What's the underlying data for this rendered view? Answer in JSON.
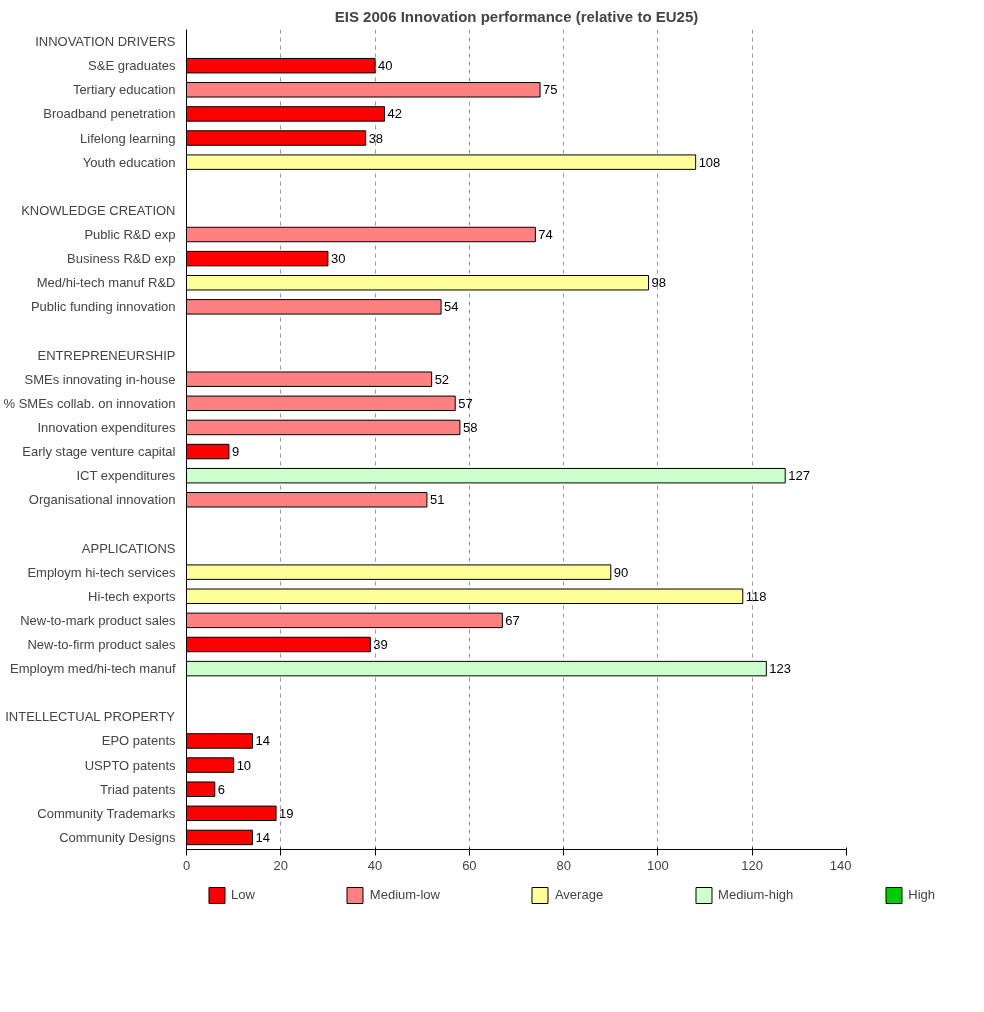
{
  "chart_data": {
    "type": "bar",
    "orientation": "horizontal",
    "title": "EIS 2006 Innovation performance (relative to EU25)",
    "categories": [
      "INNOVATION DRIVERS",
      "S&E graduates",
      "Tertiary education",
      "Broadband penetration",
      "Lifelong learning",
      "Youth education",
      null,
      "KNOWLEDGE CREATION",
      "Public R&D exp",
      "Business R&D exp",
      "Med/hi-tech manuf R&D",
      "Public funding innovation",
      null,
      "ENTREPRENEURSHIP",
      "SMEs innovating in-house",
      "% SMEs collab. on innovation",
      "Innovation expenditures",
      "Early stage venture capital",
      "ICT expenditures",
      "Organisational innovation",
      null,
      "APPLICATIONS",
      "Employm hi-tech services",
      "Hi-tech exports",
      "New-to-mark product sales",
      "New-to-firm product sales",
      "Employm med/hi-tech manuf",
      null,
      "INTELLECTUAL PROPERTY",
      "EPO patents",
      "USPTO patents",
      "Triad patents",
      "Community Trademarks",
      "Community Designs"
    ],
    "series": [
      {
        "name": "Low",
        "color": "#ff0000",
        "values": [
          null,
          40,
          null,
          42,
          38,
          null,
          null,
          null,
          null,
          30,
          null,
          null,
          null,
          null,
          null,
          null,
          null,
          9,
          null,
          null,
          null,
          null,
          null,
          null,
          null,
          39,
          null,
          null,
          null,
          14,
          10,
          6,
          19,
          14
        ]
      },
      {
        "name": "Medium-low",
        "color": "#ff8080",
        "values": [
          null,
          null,
          75,
          null,
          null,
          null,
          null,
          null,
          74,
          null,
          null,
          54,
          null,
          null,
          52,
          57,
          58,
          null,
          null,
          51,
          null,
          null,
          null,
          null,
          67,
          null,
          null,
          null,
          null,
          null,
          null,
          null,
          null,
          null
        ]
      },
      {
        "name": "Average",
        "color": "#ffff99",
        "values": [
          null,
          null,
          null,
          null,
          null,
          108,
          null,
          null,
          null,
          null,
          98,
          null,
          null,
          null,
          null,
          null,
          null,
          null,
          null,
          null,
          null,
          null,
          90,
          118,
          null,
          null,
          null,
          null,
          null,
          null,
          null,
          null,
          null,
          null
        ]
      },
      {
        "name": "Medium-high",
        "color": "#ccffcc",
        "values": [
          null,
          null,
          null,
          null,
          null,
          null,
          null,
          null,
          null,
          null,
          null,
          null,
          null,
          null,
          null,
          null,
          null,
          null,
          127,
          null,
          null,
          null,
          null,
          null,
          null,
          null,
          123,
          null,
          null,
          null,
          null,
          null,
          null,
          null
        ]
      },
      {
        "name": "High",
        "color": "#00cc00",
        "values": [
          null,
          null,
          null,
          null,
          null,
          null,
          null,
          null,
          null,
          null,
          null,
          null,
          null,
          null,
          null,
          null,
          null,
          null,
          null,
          null,
          null,
          null,
          null,
          null,
          null,
          null,
          null,
          null,
          null,
          null,
          null,
          null,
          null,
          null
        ]
      }
    ],
    "xlim": [
      0,
      140
    ],
    "xticks": [
      0,
      20,
      40,
      60,
      80,
      100,
      120,
      140
    ],
    "grid": "x",
    "legend": "bottom",
    "data_labels": true
  }
}
